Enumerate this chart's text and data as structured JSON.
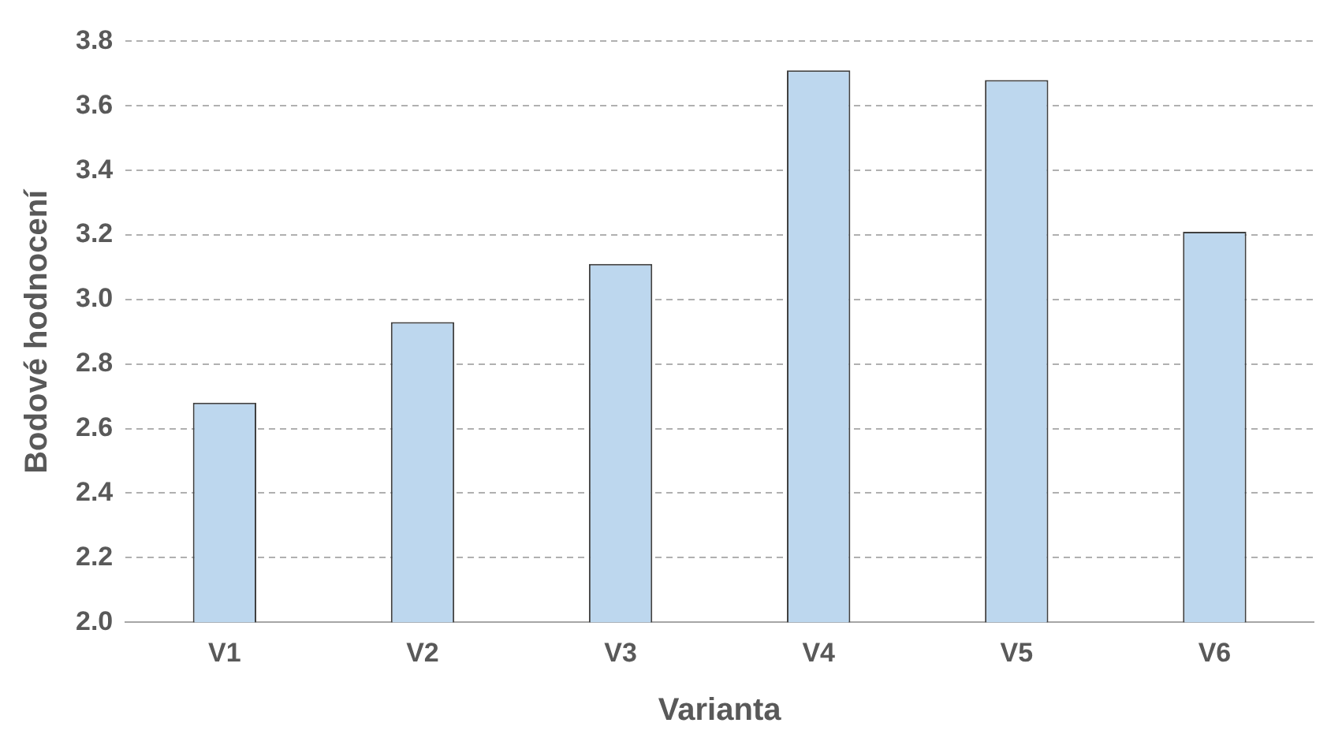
{
  "chart_data": {
    "type": "bar",
    "xlabel": "Varianta",
    "ylabel": "Bodové hodnocení",
    "categories": [
      "V1",
      "V2",
      "V3",
      "V4",
      "V5",
      "V6"
    ],
    "values": [
      2.68,
      2.93,
      3.11,
      3.71,
      3.68,
      3.21
    ],
    "color": "#bdd7ee",
    "ylim": [
      2.0,
      3.8
    ],
    "yticks": [
      {
        "value": 2.0,
        "label": "2.0"
      },
      {
        "value": 2.2,
        "label": "2.2"
      },
      {
        "value": 2.4,
        "label": "2.4"
      },
      {
        "value": 2.6,
        "label": "2.6"
      },
      {
        "value": 2.8,
        "label": "2.8"
      },
      {
        "value": 3.0,
        "label": "3.0"
      },
      {
        "value": 3.2,
        "label": "3.2"
      },
      {
        "value": 3.4,
        "label": "3.4"
      },
      {
        "value": 3.6,
        "label": "3.6"
      },
      {
        "value": 3.8,
        "label": "3.8"
      }
    ],
    "grid": "y",
    "legend": false
  }
}
